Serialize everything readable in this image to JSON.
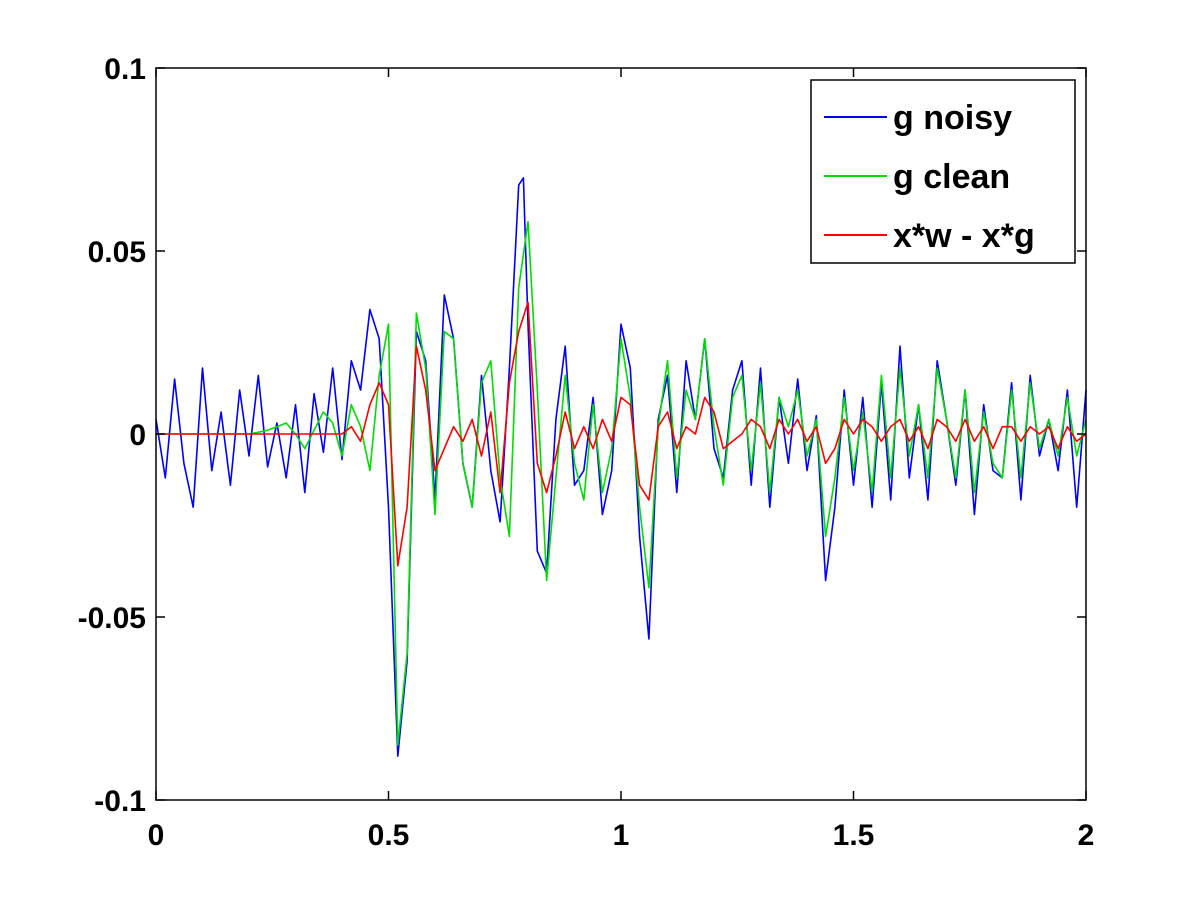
{
  "chart_data": {
    "type": "line",
    "title": "",
    "xlabel": "",
    "ylabel": "",
    "xlim": [
      0,
      2
    ],
    "ylim": [
      -0.1,
      0.1
    ],
    "x_ticks": [
      0,
      0.5,
      1,
      1.5,
      2
    ],
    "x_tick_labels": [
      "0",
      "0.5",
      "1",
      "1.5",
      "2"
    ],
    "y_ticks": [
      -0.1,
      -0.05,
      0,
      0.05,
      0.1
    ],
    "y_tick_labels": [
      "-0.1",
      "-0.05",
      "0",
      "0.05",
      "0.1"
    ],
    "grid": false,
    "legend_position": "top-right",
    "series": [
      {
        "name": "g noisy",
        "color": "#0000ff",
        "x": [
          0,
          0.02,
          0.04,
          0.06,
          0.08,
          0.1,
          0.12,
          0.14,
          0.16,
          0.18,
          0.2,
          0.22,
          0.24,
          0.26,
          0.28,
          0.3,
          0.32,
          0.34,
          0.36,
          0.38,
          0.4,
          0.42,
          0.44,
          0.46,
          0.48,
          0.5,
          0.52,
          0.54,
          0.56,
          0.58,
          0.6,
          0.62,
          0.64,
          0.66,
          0.68,
          0.7,
          0.72,
          0.74,
          0.76,
          0.78,
          0.79,
          0.8,
          0.82,
          0.84,
          0.86,
          0.88,
          0.9,
          0.92,
          0.94,
          0.96,
          0.98,
          1.0,
          1.02,
          1.04,
          1.06,
          1.08,
          1.1,
          1.12,
          1.14,
          1.16,
          1.18,
          1.2,
          1.22,
          1.24,
          1.26,
          1.28,
          1.3,
          1.32,
          1.34,
          1.36,
          1.38,
          1.4,
          1.42,
          1.44,
          1.46,
          1.48,
          1.5,
          1.52,
          1.54,
          1.56,
          1.58,
          1.6,
          1.62,
          1.64,
          1.66,
          1.68,
          1.7,
          1.72,
          1.74,
          1.76,
          1.78,
          1.8,
          1.82,
          1.84,
          1.86,
          1.88,
          1.9,
          1.92,
          1.94,
          1.96,
          1.98,
          2.0
        ],
        "values": [
          0.004,
          -0.012,
          0.015,
          -0.008,
          -0.02,
          0.018,
          -0.01,
          0.006,
          -0.014,
          0.012,
          -0.006,
          0.016,
          -0.009,
          0.003,
          -0.012,
          0.008,
          -0.016,
          0.011,
          -0.005,
          0.018,
          -0.007,
          0.02,
          0.012,
          0.034,
          0.026,
          -0.02,
          -0.088,
          -0.062,
          0.028,
          0.02,
          -0.018,
          0.038,
          0.026,
          -0.008,
          -0.02,
          0.016,
          -0.01,
          -0.024,
          0.018,
          0.068,
          0.07,
          0.03,
          -0.032,
          -0.038,
          0.004,
          0.024,
          -0.014,
          -0.01,
          0.01,
          -0.022,
          -0.01,
          0.03,
          0.018,
          -0.028,
          -0.056,
          0.004,
          0.016,
          -0.016,
          0.02,
          0.004,
          0.026,
          -0.004,
          -0.012,
          0.012,
          0.02,
          -0.014,
          0.018,
          -0.02,
          0.01,
          -0.008,
          0.015,
          -0.01,
          0.005,
          -0.04,
          -0.02,
          0.012,
          -0.014,
          0.01,
          -0.02,
          0.014,
          -0.018,
          0.024,
          -0.012,
          0.008,
          -0.018,
          0.02,
          0.004,
          -0.014,
          0.012,
          -0.022,
          0.008,
          -0.01,
          -0.012,
          0.014,
          -0.018,
          0.016,
          -0.006,
          0.004,
          -0.01,
          0.012,
          -0.02,
          0.012
        ]
      },
      {
        "name": "g clean",
        "color": "#00dd00",
        "x": [
          0,
          0.1,
          0.2,
          0.24,
          0.26,
          0.28,
          0.3,
          0.32,
          0.34,
          0.36,
          0.38,
          0.4,
          0.42,
          0.44,
          0.46,
          0.48,
          0.5,
          0.52,
          0.54,
          0.56,
          0.58,
          0.6,
          0.62,
          0.64,
          0.66,
          0.68,
          0.7,
          0.72,
          0.74,
          0.76,
          0.78,
          0.8,
          0.82,
          0.84,
          0.86,
          0.88,
          0.9,
          0.92,
          0.94,
          0.96,
          0.98,
          1.0,
          1.02,
          1.04,
          1.06,
          1.08,
          1.1,
          1.12,
          1.14,
          1.16,
          1.18,
          1.2,
          1.22,
          1.24,
          1.26,
          1.28,
          1.3,
          1.32,
          1.34,
          1.36,
          1.38,
          1.4,
          1.42,
          1.44,
          1.46,
          1.48,
          1.5,
          1.52,
          1.54,
          1.56,
          1.58,
          1.6,
          1.62,
          1.64,
          1.66,
          1.68,
          1.7,
          1.72,
          1.74,
          1.76,
          1.78,
          1.8,
          1.82,
          1.84,
          1.86,
          1.88,
          1.9,
          1.92,
          1.94,
          1.96,
          1.98,
          2.0
        ],
        "values": [
          0,
          0,
          0,
          0.001,
          0.002,
          0.003,
          0,
          -0.004,
          0.001,
          0.006,
          0.003,
          -0.006,
          0.008,
          0.002,
          -0.01,
          0.016,
          0.03,
          -0.085,
          -0.06,
          0.033,
          0.018,
          -0.022,
          0.028,
          0.026,
          -0.008,
          -0.02,
          0.014,
          0.02,
          -0.012,
          -0.028,
          0.04,
          0.058,
          0.012,
          -0.04,
          -0.012,
          0.016,
          -0.008,
          -0.018,
          0.008,
          -0.016,
          -0.004,
          0.026,
          0.01,
          -0.02,
          -0.042,
          0.002,
          0.02,
          -0.012,
          0.012,
          0.004,
          0.026,
          0.002,
          -0.014,
          0.01,
          0.016,
          -0.01,
          0.014,
          -0.016,
          0.01,
          0.002,
          0.012,
          -0.006,
          0.004,
          -0.028,
          -0.012,
          0.01,
          -0.01,
          0.006,
          -0.016,
          0.016,
          -0.012,
          0.018,
          -0.006,
          0.008,
          -0.012,
          0.018,
          0.004,
          -0.012,
          0.012,
          -0.016,
          0.006,
          -0.008,
          -0.012,
          0.012,
          -0.012,
          0.014,
          -0.004,
          0.004,
          -0.006,
          0.01,
          -0.006,
          0.004
        ]
      },
      {
        "name": "x*w - x*g",
        "color": "#ff0000",
        "x": [
          0,
          0.1,
          0.2,
          0.3,
          0.38,
          0.4,
          0.42,
          0.44,
          0.46,
          0.48,
          0.5,
          0.52,
          0.54,
          0.56,
          0.58,
          0.6,
          0.62,
          0.64,
          0.66,
          0.68,
          0.7,
          0.72,
          0.74,
          0.76,
          0.78,
          0.8,
          0.82,
          0.84,
          0.86,
          0.88,
          0.9,
          0.92,
          0.94,
          0.96,
          0.98,
          1.0,
          1.02,
          1.04,
          1.06,
          1.08,
          1.1,
          1.12,
          1.14,
          1.16,
          1.18,
          1.2,
          1.22,
          1.24,
          1.26,
          1.28,
          1.3,
          1.32,
          1.34,
          1.36,
          1.38,
          1.4,
          1.42,
          1.44,
          1.46,
          1.48,
          1.5,
          1.52,
          1.54,
          1.56,
          1.58,
          1.6,
          1.62,
          1.64,
          1.66,
          1.68,
          1.7,
          1.72,
          1.74,
          1.76,
          1.78,
          1.8,
          1.82,
          1.84,
          1.86,
          1.88,
          1.9,
          1.92,
          1.94,
          1.96,
          1.98,
          2.0
        ],
        "values": [
          0,
          0,
          0,
          0,
          0,
          0,
          0.002,
          -0.002,
          0.008,
          0.014,
          0.008,
          -0.036,
          -0.02,
          0.024,
          0.012,
          -0.01,
          -0.004,
          0.002,
          -0.002,
          0.004,
          -0.006,
          0.006,
          -0.016,
          0.014,
          0.028,
          0.036,
          -0.008,
          -0.016,
          -0.006,
          0.006,
          -0.004,
          0.002,
          -0.004,
          0.004,
          -0.002,
          0.01,
          0.008,
          -0.014,
          -0.018,
          0.002,
          0.006,
          -0.004,
          0.002,
          0,
          0.01,
          0.006,
          -0.004,
          -0.002,
          0,
          0.004,
          0.002,
          -0.004,
          0.004,
          0,
          0.004,
          -0.002,
          0.002,
          -0.008,
          -0.004,
          0.004,
          0,
          0.004,
          0.002,
          -0.002,
          0.002,
          0.004,
          -0.002,
          0.002,
          -0.004,
          0.004,
          0.002,
          -0.002,
          0.004,
          -0.002,
          0.002,
          -0.004,
          0.002,
          0.002,
          -0.002,
          0.002,
          0,
          0.002,
          -0.004,
          0.002,
          -0.002,
          0
        ]
      }
    ]
  }
}
